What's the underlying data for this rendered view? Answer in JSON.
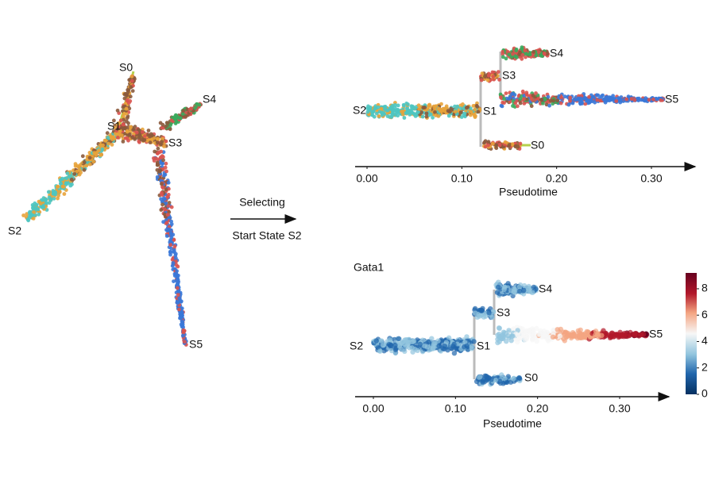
{
  "chart_data": [
    {
      "type": "trajectory",
      "states": [
        "S0",
        "S1",
        "S2",
        "S3",
        "S4",
        "S5"
      ]
    },
    {
      "type": "pseudotime",
      "states": [
        "S0",
        "S1",
        "S2",
        "S3",
        "S4",
        "S5"
      ],
      "xlabel": "Pseudotime",
      "xlim": [
        0,
        0.3
      ],
      "xticks": [
        {
          "value": 0,
          "label": "0.00"
        },
        {
          "value": 0.1,
          "label": "0.10"
        },
        {
          "value": 0.2,
          "label": "0.20"
        },
        {
          "value": 0.3,
          "label": "0.30"
        }
      ]
    },
    {
      "type": "pseudotime",
      "title": "Gata1",
      "states": [
        "S0",
        "S1",
        "S2",
        "S3",
        "S4",
        "S5"
      ],
      "xlabel": "Pseudotime",
      "xlim": [
        0,
        0.3
      ],
      "xticks": [
        {
          "value": 0,
          "label": "0.00"
        },
        {
          "value": 0.1,
          "label": "0.10"
        },
        {
          "value": 0.2,
          "label": "0.20"
        },
        {
          "value": 0.3,
          "label": "0.30"
        }
      ],
      "colorbar": {
        "lim": [
          0,
          9.2
        ],
        "ticks": [
          0,
          2,
          4,
          6,
          8
        ]
      }
    }
  ],
  "arrow_labels": {
    "top": "Selecting",
    "bottom": "Start State S2"
  }
}
